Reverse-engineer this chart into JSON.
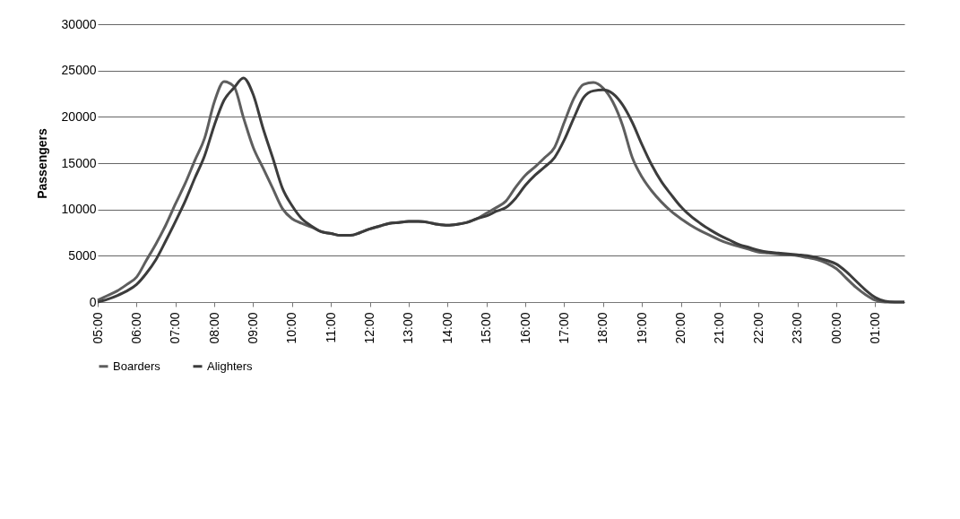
{
  "chart_data": {
    "type": "line",
    "ylabel": "Passengers",
    "categories": [
      "05:00",
      null,
      null,
      null,
      "06:00",
      null,
      null,
      null,
      "07:00",
      null,
      null,
      null,
      "08:00",
      null,
      null,
      null,
      "09:00",
      null,
      null,
      null,
      "10:00",
      null,
      null,
      null,
      "11:00",
      null,
      null,
      null,
      "12:00",
      null,
      null,
      null,
      "13:00",
      null,
      null,
      null,
      "14:00",
      null,
      null,
      null,
      "15:00",
      null,
      null,
      null,
      "16:00",
      null,
      null,
      null,
      "17:00",
      null,
      null,
      null,
      "18:00",
      null,
      null,
      null,
      "19:00",
      null,
      null,
      null,
      "20:00",
      null,
      null,
      null,
      "21:00",
      null,
      null,
      null,
      "22:00",
      null,
      null,
      null,
      "23:00",
      null,
      null,
      null,
      "00:00",
      null,
      null,
      null,
      "01:00",
      null,
      null,
      null
    ],
    "series": [
      {
        "name": "Boarders",
        "color": "#5e5e5e",
        "values": [
          200,
          700,
          1200,
          1900,
          2700,
          4500,
          6300,
          8300,
          10600,
          12800,
          15300,
          17700,
          21600,
          23800,
          23300,
          19900,
          16700,
          14500,
          12300,
          10100,
          9000,
          8500,
          8100,
          7600,
          7400,
          7200,
          7200,
          7500,
          7900,
          8200,
          8500,
          8600,
          8700,
          8700,
          8600,
          8400,
          8300,
          8400,
          8600,
          9000,
          9600,
          10200,
          10900,
          12400,
          13700,
          14600,
          15600,
          16700,
          19400,
          22000,
          23500,
          23700,
          23100,
          21600,
          19100,
          15600,
          13500,
          12000,
          10800,
          9800,
          9000,
          8300,
          7700,
          7200,
          6700,
          6300,
          6000,
          5700,
          5400,
          5300,
          5200,
          5100,
          5000,
          4800,
          4600,
          4200,
          3600,
          2600,
          1600,
          800,
          200,
          0,
          0,
          0
        ]
      },
      {
        "name": "Alighters",
        "color": "#3c3c3c",
        "values": [
          0,
          300,
          700,
          1200,
          1900,
          3100,
          4600,
          6600,
          8700,
          10900,
          13400,
          15800,
          19100,
          21800,
          23100,
          24200,
          22400,
          18800,
          15600,
          12300,
          10400,
          9000,
          8200,
          7600,
          7400,
          7200,
          7200,
          7500,
          7900,
          8200,
          8500,
          8600,
          8700,
          8700,
          8600,
          8400,
          8300,
          8400,
          8600,
          9000,
          9300,
          9800,
          10200,
          11200,
          12600,
          13700,
          14600,
          15600,
          17500,
          19900,
          22100,
          22800,
          22900,
          22500,
          21300,
          19400,
          17000,
          14800,
          13000,
          11600,
          10300,
          9300,
          8500,
          7800,
          7200,
          6700,
          6200,
          5900,
          5600,
          5400,
          5300,
          5200,
          5100,
          5000,
          4800,
          4500,
          4100,
          3300,
          2300,
          1300,
          500,
          100,
          0,
          0
        ]
      }
    ],
    "ylim": [
      0,
      30000
    ],
    "yticks": [
      0,
      5000,
      10000,
      15000,
      20000,
      25000,
      30000
    ],
    "grid": "y",
    "legend": "bottom",
    "marker": "none",
    "line_style": "solid"
  }
}
